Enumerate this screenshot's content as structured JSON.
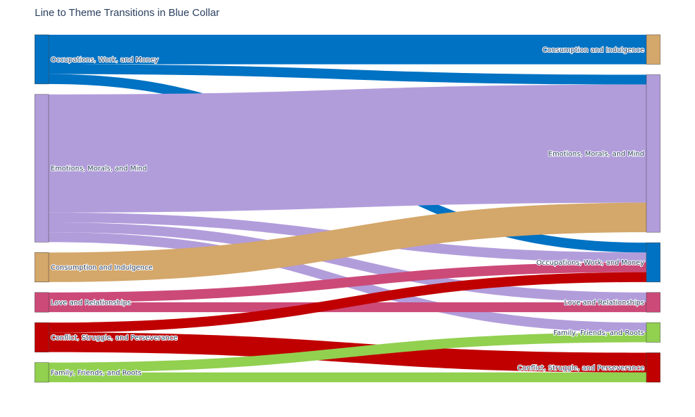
{
  "title": "Line to Theme Transitions in Blue Collar",
  "chart_data": {
    "type": "sankey",
    "title": "Line to Theme Transitions in Blue Collar",
    "themes": {
      "occupations": {
        "label": "Occupations, Work, and Money",
        "color": "#0072c3"
      },
      "emotions": {
        "label": "Emotions, Morals, and Mind",
        "color": "#b29ddb"
      },
      "consumption": {
        "label": "Consumption and Indulgence",
        "color": "#d4a76a"
      },
      "love": {
        "label": "Love and Relationships",
        "color": "#cc4a78"
      },
      "conflict": {
        "label": "Conflict, Struggle, and Perseverance",
        "color": "#c00000"
      },
      "family": {
        "label": "Family, Friends, and Roots",
        "color": "#92d050"
      }
    },
    "source_order": [
      "occupations",
      "emotions",
      "consumption",
      "love",
      "conflict",
      "family"
    ],
    "target_order": [
      "consumption",
      "emotions",
      "occupations",
      "love",
      "family",
      "conflict"
    ],
    "links": [
      {
        "source": "occupations",
        "target": "consumption",
        "value": 3
      },
      {
        "source": "occupations",
        "target": "emotions",
        "value": 1
      },
      {
        "source": "occupations",
        "target": "occupations",
        "value": 1
      },
      {
        "source": "emotions",
        "target": "emotions",
        "value": 12
      },
      {
        "source": "emotions",
        "target": "occupations",
        "value": 1
      },
      {
        "source": "emotions",
        "target": "love",
        "value": 1
      },
      {
        "source": "emotions",
        "target": "family",
        "value": 1
      },
      {
        "source": "consumption",
        "target": "emotions",
        "value": 3
      },
      {
        "source": "love",
        "target": "occupations",
        "value": 1
      },
      {
        "source": "love",
        "target": "love",
        "value": 1
      },
      {
        "source": "conflict",
        "target": "occupations",
        "value": 1
      },
      {
        "source": "conflict",
        "target": "conflict",
        "value": 2
      },
      {
        "source": "family",
        "target": "family",
        "value": 1
      },
      {
        "source": "family",
        "target": "conflict",
        "value": 1
      }
    ]
  }
}
